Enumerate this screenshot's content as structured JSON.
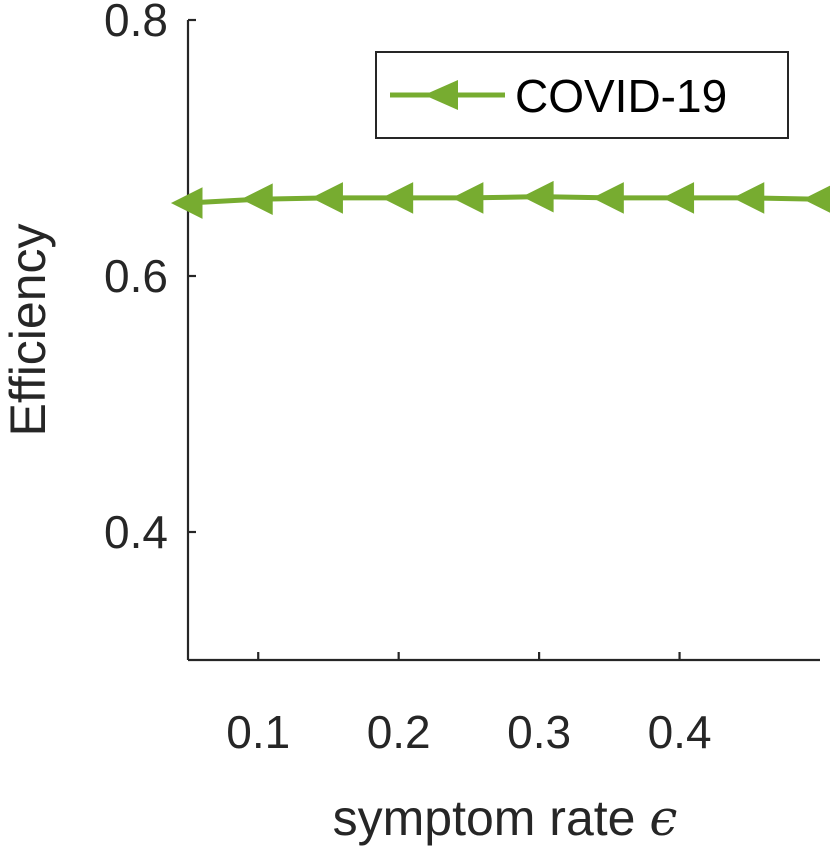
{
  "chart_data": {
    "type": "line",
    "title": "",
    "xlabel": "symptom rate",
    "xlabel_symbol": "ϵ",
    "ylabel": "Efficiency",
    "xlim": [
      0.05,
      0.5
    ],
    "ylim": [
      0.3,
      0.8
    ],
    "xticks": [
      0.1,
      0.2,
      0.3,
      0.4
    ],
    "xtick_labels": [
      "0.1",
      "0.2",
      "0.3",
      "0.4"
    ],
    "yticks": [
      0.4,
      0.6,
      0.8
    ],
    "ytick_labels": [
      "0.4",
      "0.6",
      "0.8"
    ],
    "grid": false,
    "legend_position": "top-right",
    "series": [
      {
        "name": "COVID-19",
        "color": "#77AC30",
        "marker": "triangle-left",
        "x": [
          0.05,
          0.1,
          0.15,
          0.2,
          0.25,
          0.3,
          0.35,
          0.4,
          0.45,
          0.5
        ],
        "y": [
          0.657,
          0.66,
          0.661,
          0.661,
          0.661,
          0.662,
          0.661,
          0.661,
          0.661,
          0.66
        ]
      }
    ]
  }
}
